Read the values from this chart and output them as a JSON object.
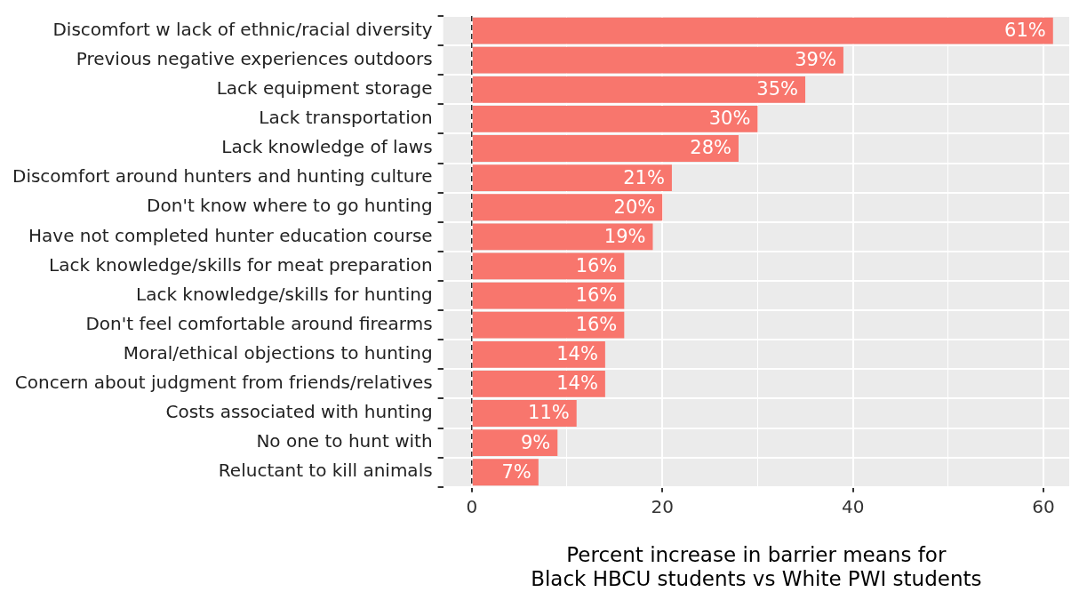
{
  "chart_data": {
    "type": "bar",
    "orientation": "horizontal",
    "xlabel": "Percent increase in barrier means for\nBlack HBCU students vs White PWI students",
    "categories": [
      "Discomfort w lack of ethnic/racial diversity",
      "Previous negative experiences outdoors",
      "Lack equipment storage",
      "Lack transportation",
      "Lack knowledge of laws",
      "Discomfort around hunters and hunting culture",
      "Don't know where to go hunting",
      "Have not completed hunter education course",
      "Lack knowledge/skills for meat preparation",
      "Lack knowledge/skills for hunting",
      "Don't feel comfortable around firearms",
      "Moral/ethical objections to hunting",
      "Concern about judgment from friends/relatives",
      "Costs associated with hunting",
      "No one to hunt with",
      "Reluctant to kill animals"
    ],
    "values": [
      61,
      39,
      35,
      30,
      28,
      21,
      20,
      19,
      16,
      16,
      16,
      14,
      14,
      11,
      9,
      7
    ],
    "value_labels": [
      "61%",
      "39%",
      "35%",
      "30%",
      "28%",
      "21%",
      "20%",
      "19%",
      "16%",
      "16%",
      "16%",
      "14%",
      "14%",
      "11%",
      "9%",
      "7%"
    ],
    "color": "#f8766d",
    "xlim": [
      -3,
      62.7
    ],
    "xticks": [
      0,
      {
        "value": 10,
        "label": null
      },
      20,
      {
        "value": 30,
        "label": null
      },
      40,
      {
        "value": 50,
        "label": null
      },
      60
    ],
    "grid": true,
    "ref_lines": [
      {
        "axis": "x",
        "value": 0,
        "label": null,
        "color": "#000000",
        "line_style": "dashed"
      }
    ]
  }
}
